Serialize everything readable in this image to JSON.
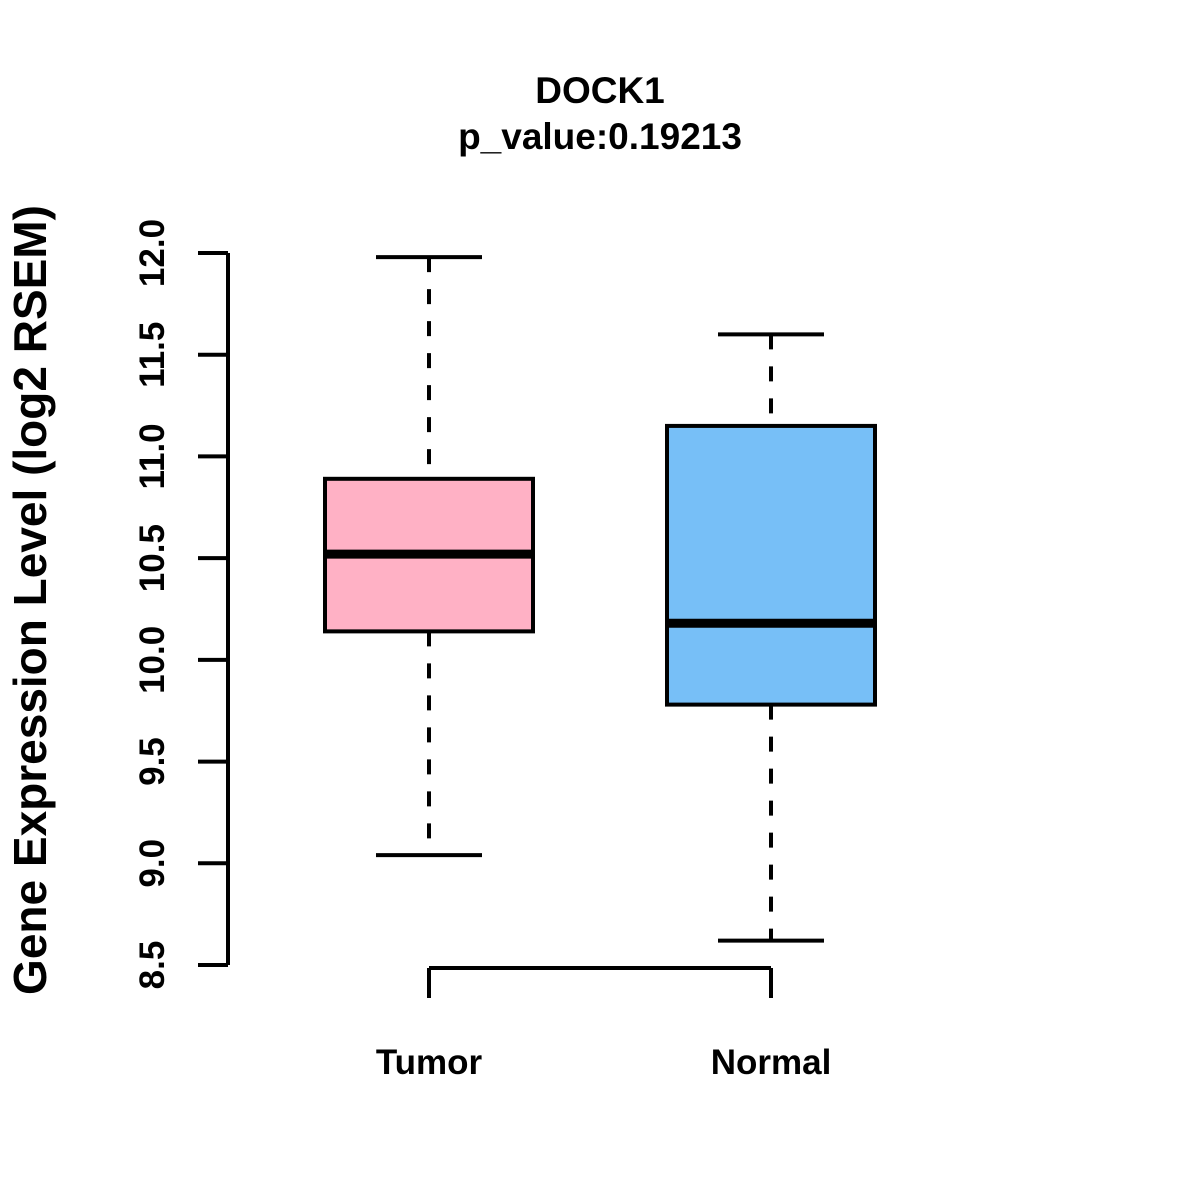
{
  "chart_data": {
    "type": "boxplot",
    "title": "DOCK1",
    "subtitle": "p_value:0.19213",
    "xlabel": "",
    "ylabel": "Gene Expression Level (log2 RSEM)",
    "categories": [
      "Tumor",
      "Normal"
    ],
    "yticks": [
      "8.5",
      "9.0",
      "9.5",
      "10.0",
      "10.5",
      "11.0",
      "11.5",
      "12.0"
    ],
    "ylim": [
      8.5,
      12.0
    ],
    "grid": false,
    "legend": "none",
    "series": [
      {
        "name": "Tumor",
        "whisker_low": 9.04,
        "q1": 10.14,
        "median": 10.52,
        "q3": 10.89,
        "whisker_high": 11.98,
        "color": "#FFB1C5"
      },
      {
        "name": "Normal",
        "whisker_low": 8.62,
        "q1": 9.78,
        "median": 10.18,
        "q3": 11.15,
        "whisker_high": 11.6,
        "color": "#77BFF7"
      }
    ],
    "colors": {
      "stroke": "#000000",
      "background": "#ffffff",
      "tumor_fill": "#FFB1C5",
      "normal_fill": "#77BFF7"
    }
  }
}
